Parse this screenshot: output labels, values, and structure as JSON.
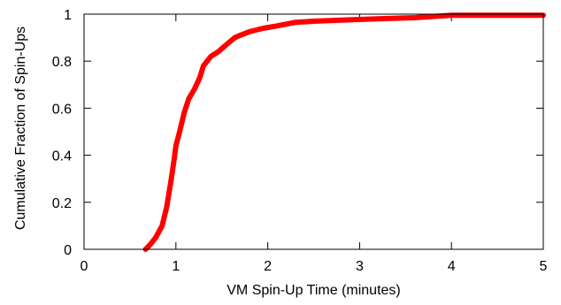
{
  "chart_data": {
    "type": "line",
    "title": "",
    "xlabel": "VM Spin-Up Time (minutes)",
    "ylabel": "Cumulative Fraction of Spin-Ups",
    "xlim": [
      0,
      5
    ],
    "ylim": [
      0,
      1
    ],
    "x_ticks": [
      "0",
      "1",
      "2",
      "3",
      "4",
      "5"
    ],
    "y_ticks": [
      "0",
      "0.2",
      "0.4",
      "0.6",
      "0.8",
      "1"
    ],
    "grid": false,
    "legend": "none",
    "series": [
      {
        "color": "#ff0000",
        "x": [
          0.67,
          0.72,
          0.78,
          0.85,
          0.9,
          0.95,
          0.98,
          1.0,
          1.04,
          1.09,
          1.14,
          1.2,
          1.26,
          1.3,
          1.34,
          1.38,
          1.42,
          1.46,
          1.52,
          1.58,
          1.64,
          1.7,
          1.8,
          1.95,
          2.1,
          2.3,
          2.5,
          2.8,
          3.2,
          3.6,
          4.0,
          4.5,
          5.0
        ],
        "y": [
          0.0,
          0.02,
          0.05,
          0.1,
          0.18,
          0.3,
          0.38,
          0.44,
          0.5,
          0.58,
          0.64,
          0.68,
          0.73,
          0.78,
          0.8,
          0.82,
          0.83,
          0.84,
          0.86,
          0.88,
          0.9,
          0.91,
          0.925,
          0.94,
          0.95,
          0.965,
          0.97,
          0.975,
          0.98,
          0.985,
          0.995,
          0.995,
          0.995
        ]
      }
    ]
  }
}
